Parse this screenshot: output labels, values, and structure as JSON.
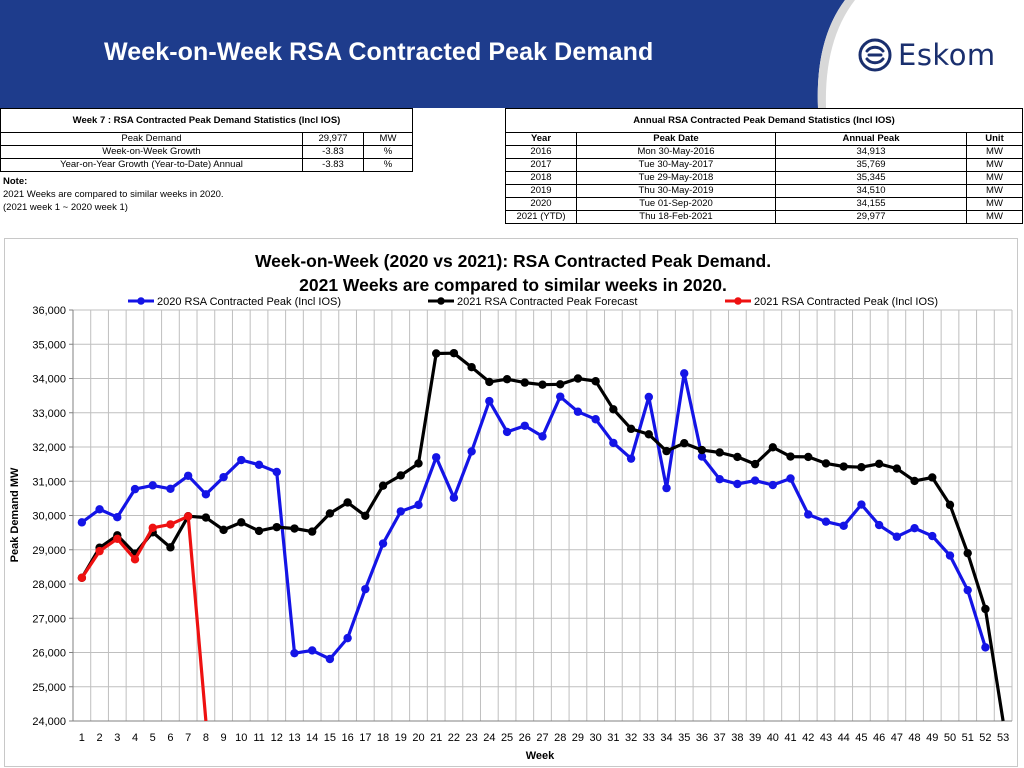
{
  "slide": {
    "title": "Week-on-Week RSA Contracted Peak Demand",
    "brand": "Eskom"
  },
  "week_table": {
    "title": "Week 7 : RSA Contracted Peak Demand Statistics (Incl IOS)",
    "rows": [
      {
        "label": "Peak Demand",
        "value": "29,977",
        "unit": "MW"
      },
      {
        "label": "Week-on-Week Growth",
        "value": "-3.83",
        "unit": "%"
      },
      {
        "label": "Year-on-Year Growth (Year-to-Date) Annual",
        "value": "-3.83",
        "unit": "%"
      }
    ]
  },
  "note": {
    "label": "Note:",
    "line1": "2021 Weeks are compared to similar weeks in 2020.",
    "line2": "(2021 week 1 ~ 2020 week 1)"
  },
  "annual_table": {
    "title": "Annual RSA Contracted Peak Demand Statistics (Incl IOS)",
    "headers": [
      "Year",
      "Peak Date",
      "Annual Peak",
      "Unit"
    ],
    "rows": [
      [
        "2016",
        "Mon 30-May-2016",
        "34,913",
        "MW"
      ],
      [
        "2017",
        "Tue 30-May-2017",
        "35,769",
        "MW"
      ],
      [
        "2018",
        "Tue 29-May-2018",
        "35,345",
        "MW"
      ],
      [
        "2019",
        "Thu 30-May-2019",
        "34,510",
        "MW"
      ],
      [
        "2020",
        "Tue 01-Sep-2020",
        "34,155",
        "MW"
      ],
      [
        "2021 (YTD)",
        "Thu 18-Feb-2021",
        "29,977",
        "MW"
      ]
    ]
  },
  "chart_data": {
    "type": "line",
    "title_line1": "Week-on-Week (2020 vs 2021): RSA Contracted Peak Demand.",
    "title_line2": "2021 Weeks are compared to similar weeks in 2020.",
    "xlabel": "Week",
    "ylabel": "Peak Demand MW",
    "ylim": [
      24000,
      36000
    ],
    "yticks": [
      24000,
      25000,
      26000,
      27000,
      28000,
      29000,
      30000,
      31000,
      32000,
      33000,
      34000,
      35000,
      36000
    ],
    "ytick_labels": [
      "24,000",
      "25,000",
      "26,000",
      "27,000",
      "28,000",
      "29,000",
      "30,000",
      "31,000",
      "32,000",
      "33,000",
      "34,000",
      "35,000",
      "36,000"
    ],
    "x": [
      1,
      2,
      3,
      4,
      5,
      6,
      7,
      8,
      9,
      10,
      11,
      12,
      13,
      14,
      15,
      16,
      17,
      18,
      19,
      20,
      21,
      22,
      23,
      24,
      25,
      26,
      27,
      28,
      29,
      30,
      31,
      32,
      33,
      34,
      35,
      36,
      37,
      38,
      39,
      40,
      41,
      42,
      43,
      44,
      45,
      46,
      47,
      48,
      49,
      50,
      51,
      52,
      53
    ],
    "series": [
      {
        "name": "2020 RSA Contracted Peak (Incl IOS)",
        "color": "#1414e6",
        "values": [
          29800,
          30180,
          29950,
          30770,
          30880,
          30780,
          31160,
          30620,
          31120,
          31620,
          31480,
          31270,
          25980,
          26060,
          25810,
          26420,
          27850,
          29180,
          30120,
          30310,
          31700,
          30520,
          31870,
          33340,
          32440,
          32620,
          32310,
          33470,
          33030,
          32810,
          32120,
          31660,
          33460,
          30800,
          34150,
          31720,
          31060,
          30920,
          31020,
          30890,
          31080,
          30030,
          29820,
          29700,
          30320,
          29720,
          29380,
          29630,
          29400,
          28830,
          27820,
          26150,
          null
        ]
      },
      {
        "name": "2021 RSA Contracted Peak Forecast",
        "color": "#000000",
        "values": [
          28180,
          29060,
          29420,
          28890,
          29510,
          29070,
          29980,
          29940,
          29580,
          29800,
          29550,
          29660,
          29620,
          29530,
          30060,
          30380,
          29990,
          30870,
          31170,
          31520,
          34730,
          34740,
          34330,
          33900,
          33980,
          33880,
          33820,
          33830,
          34000,
          33920,
          33100,
          32530,
          32370,
          31880,
          32110,
          31910,
          31840,
          31710,
          31500,
          31990,
          31720,
          31710,
          31520,
          31430,
          31410,
          31510,
          31370,
          31010,
          31110,
          30310,
          28900,
          27270,
          24000
        ]
      },
      {
        "name": "2021 RSA Contracted Peak (Incl IOS)",
        "color": "#ee1111",
        "values": [
          28180,
          28960,
          29320,
          28720,
          29640,
          29740,
          29977,
          24000,
          null,
          null,
          null,
          null,
          null,
          null,
          null,
          null,
          null,
          null,
          null,
          null,
          null,
          null,
          null,
          null,
          null,
          null,
          null,
          null,
          null,
          null,
          null,
          null,
          null,
          null,
          null,
          null,
          null,
          null,
          null,
          null,
          null,
          null,
          null,
          null,
          null,
          null,
          null,
          null,
          null,
          null,
          null,
          null,
          null
        ]
      }
    ],
    "grid": true,
    "legend": "top"
  }
}
